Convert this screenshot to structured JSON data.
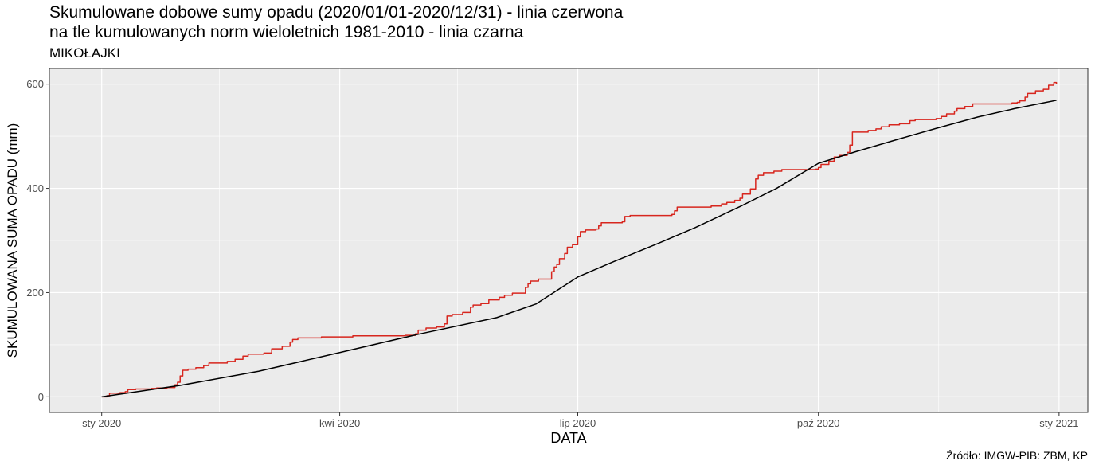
{
  "chart_data": {
    "type": "line",
    "title_line1_a": "Skumulowane dobowe sumy opadu (2020/01/01-2020/12/31) - linia czerwona",
    "title_line2_a": "na tle kumulowanych norm wieloletnich 1981-2010 - ",
    "title_line2_b": "linia czarna",
    "subtitle": "MIKOŁAJKI",
    "xlabel": "DATA",
    "ylabel": "SKUMULOWANA SUMA OPADU (mm)",
    "source": "Źródło: IMGW-PIB: ZBM, KP",
    "xlim": [
      "2019-12-12",
      "2021-01-12"
    ],
    "ylim": [
      -30,
      630
    ],
    "x_ticks": [
      {
        "date": "2020-01-01",
        "label": "sty 2020"
      },
      {
        "date": "2020-04-01",
        "label": "kwi 2020"
      },
      {
        "date": "2020-07-01",
        "label": "lip 2020"
      },
      {
        "date": "2020-10-01",
        "label": "paź 2020"
      },
      {
        "date": "2021-01-01",
        "label": "sty 2021"
      }
    ],
    "x_minor_ticks": [
      "2020-02-15",
      "2020-05-16",
      "2020-08-16",
      "2020-11-16"
    ],
    "y_ticks": [
      0,
      200,
      400,
      600
    ],
    "y_minor_ticks": [
      100,
      300,
      500
    ],
    "grid": true,
    "series": [
      {
        "color": "#d7261e",
        "step": true,
        "points": [
          [
            "2020-01-01",
            0
          ],
          [
            "2020-01-03",
            2
          ],
          [
            "2020-01-04",
            7
          ],
          [
            "2020-01-08",
            8
          ],
          [
            "2020-01-10",
            10
          ],
          [
            "2020-01-11",
            14
          ],
          [
            "2020-01-14",
            15
          ],
          [
            "2020-01-20",
            16
          ],
          [
            "2020-01-22",
            17
          ],
          [
            "2020-01-26",
            18
          ],
          [
            "2020-01-29",
            23
          ],
          [
            "2020-01-30",
            28
          ],
          [
            "2020-01-31",
            40
          ],
          [
            "2020-02-01",
            51
          ],
          [
            "2020-02-03",
            53
          ],
          [
            "2020-02-06",
            56
          ],
          [
            "2020-02-09",
            60
          ],
          [
            "2020-02-11",
            65
          ],
          [
            "2020-02-18",
            68
          ],
          [
            "2020-02-21",
            72
          ],
          [
            "2020-02-24",
            78
          ],
          [
            "2020-02-26",
            82
          ],
          [
            "2020-03-03",
            84
          ],
          [
            "2020-03-06",
            92
          ],
          [
            "2020-03-10",
            97
          ],
          [
            "2020-03-13",
            105
          ],
          [
            "2020-03-14",
            110
          ],
          [
            "2020-03-16",
            113
          ],
          [
            "2020-03-25",
            115
          ],
          [
            "2020-04-06",
            117
          ],
          [
            "2020-04-26",
            118
          ],
          [
            "2020-04-30",
            121
          ],
          [
            "2020-05-01",
            128
          ],
          [
            "2020-05-04",
            132
          ],
          [
            "2020-05-08",
            134
          ],
          [
            "2020-05-11",
            140
          ],
          [
            "2020-05-12",
            155
          ],
          [
            "2020-05-14",
            158
          ],
          [
            "2020-05-18",
            162
          ],
          [
            "2020-05-21",
            172
          ],
          [
            "2020-05-22",
            176
          ],
          [
            "2020-05-25",
            179
          ],
          [
            "2020-05-28",
            186
          ],
          [
            "2020-06-01",
            191
          ],
          [
            "2020-06-03",
            195
          ],
          [
            "2020-06-06",
            199
          ],
          [
            "2020-06-11",
            210
          ],
          [
            "2020-06-12",
            217
          ],
          [
            "2020-06-13",
            222
          ],
          [
            "2020-06-16",
            226
          ],
          [
            "2020-06-21",
            240
          ],
          [
            "2020-06-22",
            249
          ],
          [
            "2020-06-23",
            254
          ],
          [
            "2020-06-24",
            265
          ],
          [
            "2020-06-26",
            275
          ],
          [
            "2020-06-27",
            287
          ],
          [
            "2020-06-29",
            292
          ],
          [
            "2020-07-01",
            307
          ],
          [
            "2020-07-02",
            317
          ],
          [
            "2020-07-04",
            320
          ],
          [
            "2020-07-08",
            322
          ],
          [
            "2020-07-09",
            328
          ],
          [
            "2020-07-10",
            334
          ],
          [
            "2020-07-18",
            336
          ],
          [
            "2020-07-19",
            346
          ],
          [
            "2020-07-21",
            348
          ],
          [
            "2020-08-06",
            350
          ],
          [
            "2020-08-07",
            357
          ],
          [
            "2020-08-08",
            364
          ],
          [
            "2020-08-21",
            366
          ],
          [
            "2020-08-25",
            370
          ],
          [
            "2020-08-27",
            373
          ],
          [
            "2020-08-30",
            377
          ],
          [
            "2020-09-01",
            381
          ],
          [
            "2020-09-02",
            389
          ],
          [
            "2020-09-05",
            399
          ],
          [
            "2020-09-07",
            418
          ],
          [
            "2020-09-08",
            425
          ],
          [
            "2020-09-10",
            430
          ],
          [
            "2020-09-14",
            433
          ],
          [
            "2020-09-17",
            436
          ],
          [
            "2020-09-30",
            437
          ],
          [
            "2020-10-01",
            440
          ],
          [
            "2020-10-02",
            446
          ],
          [
            "2020-10-05",
            452
          ],
          [
            "2020-10-07",
            460
          ],
          [
            "2020-10-09",
            463
          ],
          [
            "2020-10-12",
            469
          ],
          [
            "2020-10-13",
            483
          ],
          [
            "2020-10-14",
            508
          ],
          [
            "2020-10-20",
            511
          ],
          [
            "2020-10-23",
            514
          ],
          [
            "2020-10-25",
            518
          ],
          [
            "2020-10-28",
            522
          ],
          [
            "2020-11-01",
            524
          ],
          [
            "2020-11-05",
            530
          ],
          [
            "2020-11-07",
            532
          ],
          [
            "2020-11-15",
            534
          ],
          [
            "2020-11-17",
            538
          ],
          [
            "2020-11-19",
            543
          ],
          [
            "2020-11-22",
            548
          ],
          [
            "2020-11-23",
            553
          ],
          [
            "2020-11-26",
            557
          ],
          [
            "2020-11-29",
            562
          ],
          [
            "2020-12-14",
            564
          ],
          [
            "2020-12-16",
            565
          ],
          [
            "2020-12-17",
            568
          ],
          [
            "2020-12-19",
            575
          ],
          [
            "2020-12-20",
            582
          ],
          [
            "2020-12-23",
            587
          ],
          [
            "2020-12-26",
            590
          ],
          [
            "2020-12-28",
            598
          ],
          [
            "2020-12-30",
            603
          ],
          [
            "2020-12-31",
            601
          ]
        ]
      },
      {
        "color": "#000000",
        "step": false,
        "points": [
          [
            "2020-01-01",
            0
          ],
          [
            "2020-01-31",
            22
          ],
          [
            "2020-03-01",
            49
          ],
          [
            "2020-04-01",
            85
          ],
          [
            "2020-05-01",
            120
          ],
          [
            "2020-05-31",
            152
          ],
          [
            "2020-06-15",
            178
          ],
          [
            "2020-07-01",
            230
          ],
          [
            "2020-07-15",
            260
          ],
          [
            "2020-08-01",
            295
          ],
          [
            "2020-08-15",
            325
          ],
          [
            "2020-09-01",
            365
          ],
          [
            "2020-09-15",
            400
          ],
          [
            "2020-10-01",
            448
          ],
          [
            "2020-10-15",
            470
          ],
          [
            "2020-11-01",
            495
          ],
          [
            "2020-11-15",
            515
          ],
          [
            "2020-12-01",
            537
          ],
          [
            "2020-12-15",
            553
          ],
          [
            "2020-12-31",
            569
          ]
        ]
      }
    ]
  }
}
